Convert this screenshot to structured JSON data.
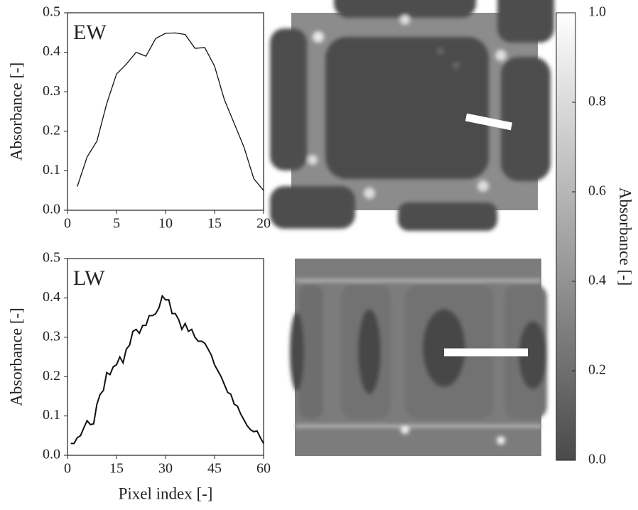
{
  "chart_data": [
    {
      "type": "line",
      "annotation": "EW",
      "ylabel": "Absorbance [-]",
      "x": [
        1,
        2,
        3,
        4,
        5,
        6,
        7,
        8,
        9,
        10,
        11,
        12,
        13,
        14,
        15,
        16,
        17,
        18,
        19,
        20
      ],
      "values": [
        0.06,
        0.135,
        0.175,
        0.27,
        0.345,
        0.37,
        0.4,
        0.39,
        0.435,
        0.448,
        0.449,
        0.445,
        0.41,
        0.412,
        0.365,
        0.28,
        0.22,
        0.16,
        0.08,
        0.05
      ],
      "color": "#111111",
      "xlim": [
        0,
        20
      ],
      "xticks": [
        0,
        5,
        10,
        15,
        20
      ],
      "ylim": [
        0,
        0.5
      ],
      "yticks": [
        {
          "value": 0,
          "label": "0.0"
        },
        0.1,
        0.2,
        0.3,
        0.4,
        0.5
      ]
    },
    {
      "type": "line",
      "annotation": "LW",
      "ylabel": "Absorbance [-]",
      "xlabel": "Pixel index [-]",
      "x": [
        1,
        2,
        3,
        4,
        5,
        6,
        7,
        8,
        9,
        10,
        11,
        12,
        13,
        14,
        15,
        16,
        17,
        18,
        19,
        20,
        21,
        22,
        23,
        24,
        25,
        26,
        27,
        28,
        29,
        30,
        31,
        32,
        33,
        34,
        35,
        36,
        37,
        38,
        39,
        40,
        41,
        42,
        43,
        44,
        45,
        46,
        47,
        48,
        49,
        50,
        51,
        52,
        53,
        54,
        55,
        56,
        57,
        58,
        59,
        60
      ],
      "values": [
        0.03,
        0.03,
        0.045,
        0.05,
        0.07,
        0.088,
        0.078,
        0.08,
        0.13,
        0.155,
        0.165,
        0.21,
        0.205,
        0.225,
        0.23,
        0.25,
        0.235,
        0.27,
        0.28,
        0.315,
        0.32,
        0.31,
        0.33,
        0.33,
        0.355,
        0.355,
        0.36,
        0.375,
        0.405,
        0.395,
        0.395,
        0.36,
        0.36,
        0.345,
        0.32,
        0.335,
        0.315,
        0.32,
        0.3,
        0.29,
        0.29,
        0.285,
        0.27,
        0.255,
        0.23,
        0.215,
        0.2,
        0.18,
        0.16,
        0.155,
        0.13,
        0.125,
        0.105,
        0.09,
        0.075,
        0.065,
        0.06,
        0.062,
        0.045,
        0.03
      ],
      "color": "#111111",
      "xlim": [
        0,
        60
      ],
      "xticks": [
        0,
        15,
        30,
        45,
        60
      ],
      "ylim": [
        0,
        0.5
      ],
      "yticks": [
        {
          "value": 0,
          "label": "0.0"
        },
        0.1,
        0.2,
        0.3,
        0.4,
        0.5
      ]
    },
    {
      "type": "colorbar",
      "ylabel": "Absorbance [-]",
      "ylim": [
        0,
        1
      ],
      "yticks": [
        {
          "value": 0,
          "label": "0.0"
        },
        0.2,
        0.4,
        0.6,
        0.8,
        {
          "value": 1,
          "label": "1.0"
        }
      ]
    }
  ]
}
